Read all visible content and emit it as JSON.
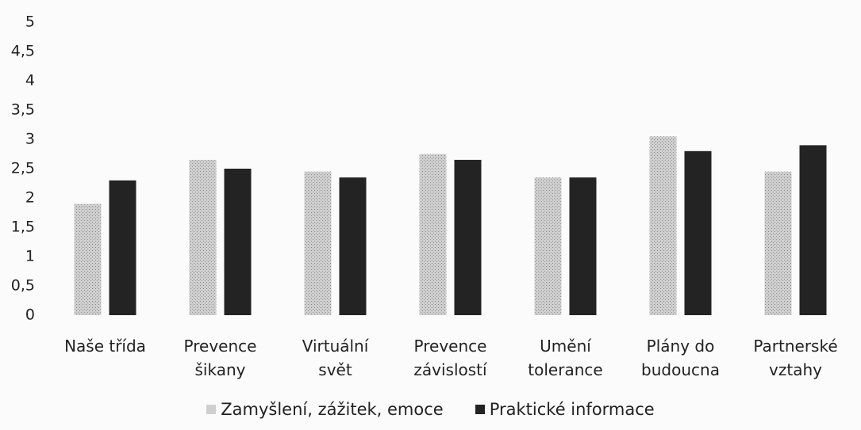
{
  "chart_data": {
    "type": "bar",
    "categories": [
      "Naše třída",
      "Prevence šikany",
      "Virtuální svět",
      "Prevence závislostí",
      "Umění tolerance",
      "Plány do budoucna",
      "Partnerské vztahy"
    ],
    "series": [
      {
        "name": "Zamyšlení, zážitek, emoce",
        "color": "#cfcfcf",
        "values": [
          1.9,
          2.65,
          2.45,
          2.75,
          2.35,
          3.05,
          2.45
        ]
      },
      {
        "name": "Praktické informace",
        "color": "#232323",
        "values": [
          2.3,
          2.5,
          2.35,
          2.65,
          2.35,
          2.8,
          2.9
        ]
      }
    ],
    "ylim": [
      0,
      5
    ],
    "yticks": [
      0,
      {
        "value": 0.5,
        "label": "0,5"
      },
      1,
      {
        "value": 1.5,
        "label": "1,5"
      },
      2,
      {
        "value": 2.5,
        "label": "2,5"
      },
      3,
      {
        "value": 3.5,
        "label": "3,5"
      },
      4,
      {
        "value": 4.5,
        "label": "4,5"
      },
      5
    ],
    "grid": false,
    "legend": "bottom"
  }
}
